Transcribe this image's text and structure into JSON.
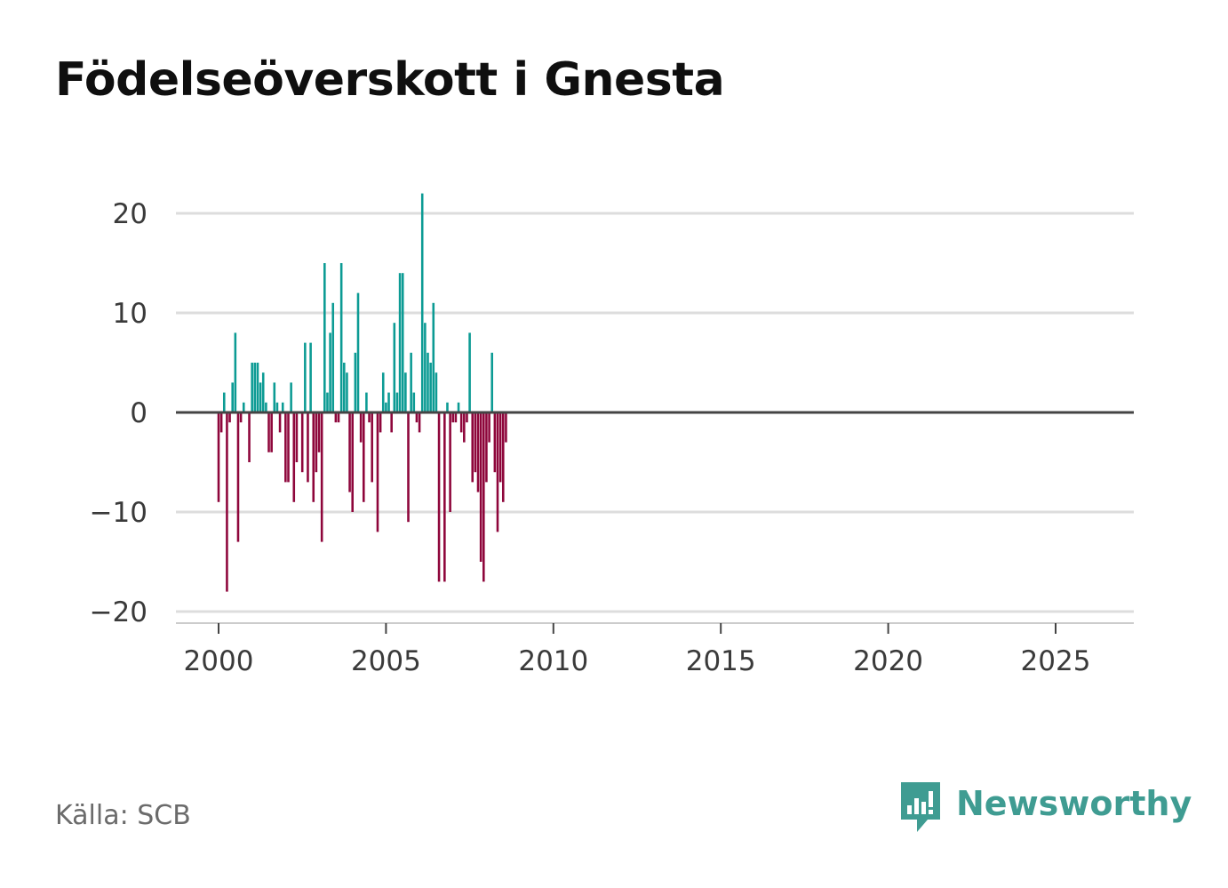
{
  "title": "Födelseöverskott i Gnesta",
  "source_label": "Källa: SCB",
  "brand": {
    "name": "Newsworthy",
    "icon": "newsworthy-logo-icon",
    "color": "#3f9c92"
  },
  "colors": {
    "positive": "#0c9b94",
    "negative": "#8e063b",
    "grid": "#dddddd",
    "zero_line": "#444444",
    "axis": "#cccccc"
  },
  "chart_data": {
    "type": "bar",
    "title": "Födelseöverskott i Gnesta",
    "xlabel": "",
    "ylabel": "",
    "ylim": [
      -20,
      24
    ],
    "yticks": [
      20,
      10,
      0,
      -10,
      -20
    ],
    "ytick_labels": [
      "20",
      "10",
      "0",
      "−10",
      "−20"
    ],
    "xlim": [
      1999.6,
      2027.3
    ],
    "xticks": [
      2000,
      2005,
      2010,
      2015,
      2020,
      2025
    ],
    "xtick_labels": [
      "2000",
      "2005",
      "2010",
      "2015",
      "2020",
      "2025"
    ],
    "grid": true,
    "x_unit": "month",
    "start": "2000-01",
    "values": [
      -9,
      -2,
      2,
      -18,
      -1,
      3,
      8,
      -13,
      -1,
      1,
      0,
      -5,
      5,
      5,
      5,
      3,
      4,
      1,
      -4,
      -4,
      3,
      1,
      -2,
      1,
      -7,
      -7,
      3,
      -9,
      -5,
      0,
      -6,
      7,
      -7,
      7,
      -9,
      -6,
      -4,
      -13,
      15,
      2,
      8,
      11,
      -1,
      -1,
      15,
      5,
      4,
      -8,
      -10,
      6,
      12,
      -3,
      -9,
      2,
      -1,
      -7,
      0,
      -12,
      -2,
      4,
      1,
      2,
      -2,
      9,
      2,
      14,
      14,
      4,
      -11,
      6,
      2,
      -1,
      -2,
      22,
      9,
      6,
      5,
      11,
      4,
      -17,
      0,
      -17,
      1,
      -10,
      -1,
      -1,
      1,
      -2,
      -3,
      -1,
      8,
      -7,
      -6,
      -8,
      -15,
      -17,
      -7,
      -3,
      6,
      -6,
      -12,
      -7,
      -9,
      -3
    ]
  }
}
